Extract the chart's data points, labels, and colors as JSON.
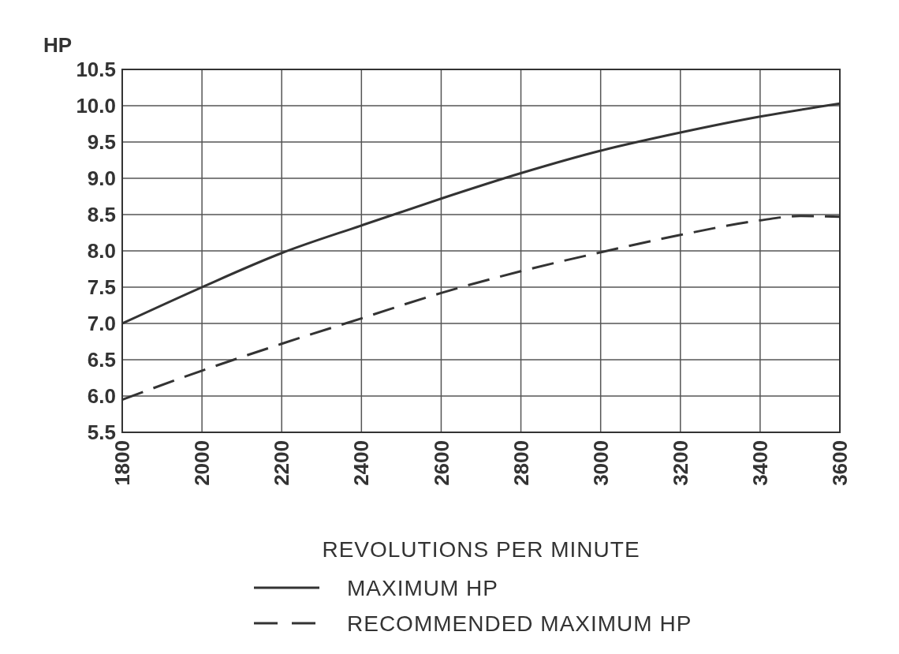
{
  "chart_data": {
    "type": "line",
    "ylabel": "HP",
    "xlabel": "REVOLUTIONS PER MINUTE",
    "xlim": [
      1800,
      3600
    ],
    "xticks": [
      1800,
      2000,
      2200,
      2400,
      2600,
      2800,
      3000,
      3200,
      3400,
      3600
    ],
    "ylim": [
      5.5,
      10.5
    ],
    "yticks": [
      5.5,
      {
        "value": 6,
        "label": "6.0"
      },
      6.5,
      {
        "value": 7,
        "label": "7.0"
      },
      7.5,
      {
        "value": 8,
        "label": "8.0"
      },
      8.5,
      {
        "value": 9,
        "label": "9.0"
      },
      9.5,
      {
        "value": 10,
        "label": "10.0"
      },
      10.5
    ],
    "grid": true,
    "legend": "bottom",
    "series": [
      {
        "name": "MAXIMUM HP",
        "color": "#333333",
        "line_style": "solid",
        "x": [
          1800,
          2000,
          2200,
          2400,
          2600,
          2800,
          3000,
          3200,
          3400,
          3600
        ],
        "values": [
          7.0,
          7.5,
          7.97,
          8.35,
          8.72,
          9.07,
          9.38,
          9.63,
          9.85,
          10.03
        ]
      },
      {
        "name": "RECOMMENDED MAXIMUM HP",
        "color": "#333333",
        "line_style": "dashed",
        "x": [
          1800,
          2000,
          2200,
          2400,
          2600,
          2800,
          3000,
          3200,
          3400,
          3500,
          3600
        ],
        "values": [
          5.95,
          6.35,
          6.72,
          7.07,
          7.42,
          7.72,
          7.98,
          8.22,
          8.42,
          8.48,
          8.47
        ]
      }
    ]
  }
}
